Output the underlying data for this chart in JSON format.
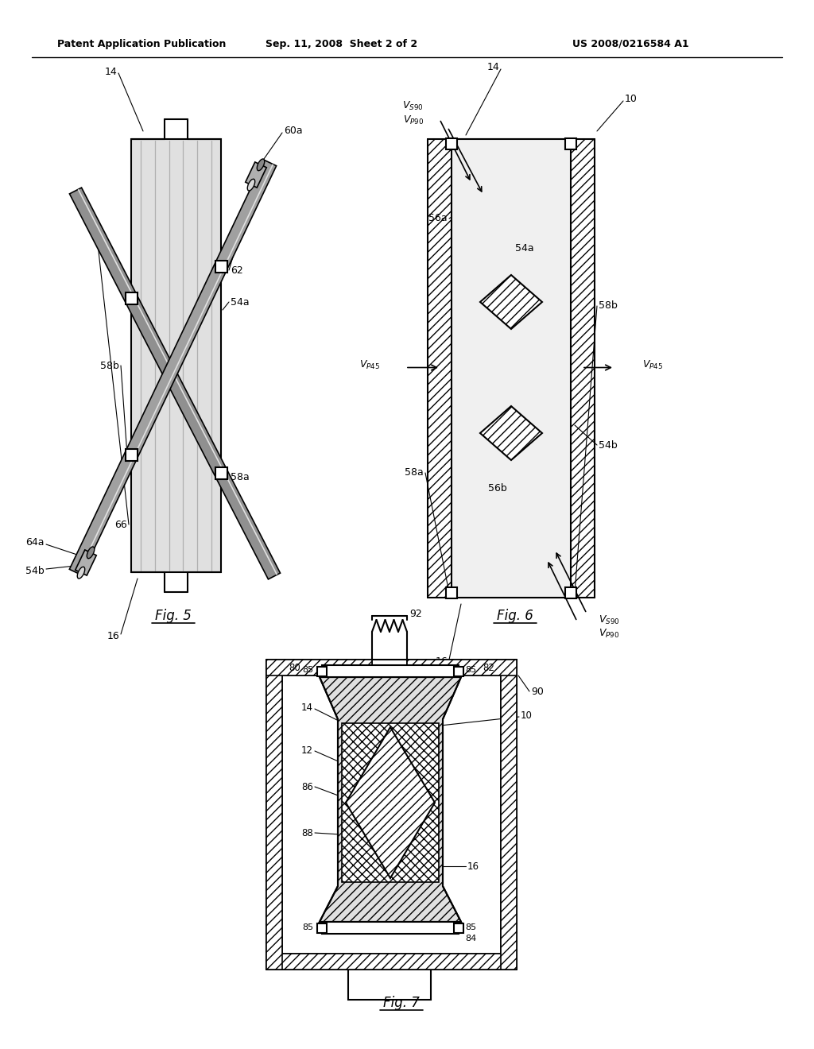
{
  "page_bg": "#ffffff",
  "header_text_left": "Patent Application Publication",
  "header_text_mid": "Sep. 11, 2008  Sheet 2 of 2",
  "header_text_right": "US 2008/0216584 A1",
  "line_color": "#000000",
  "fig5_title": "Fig. 5",
  "fig6_title": "Fig. 6",
  "fig7_title": "Fig. 7"
}
